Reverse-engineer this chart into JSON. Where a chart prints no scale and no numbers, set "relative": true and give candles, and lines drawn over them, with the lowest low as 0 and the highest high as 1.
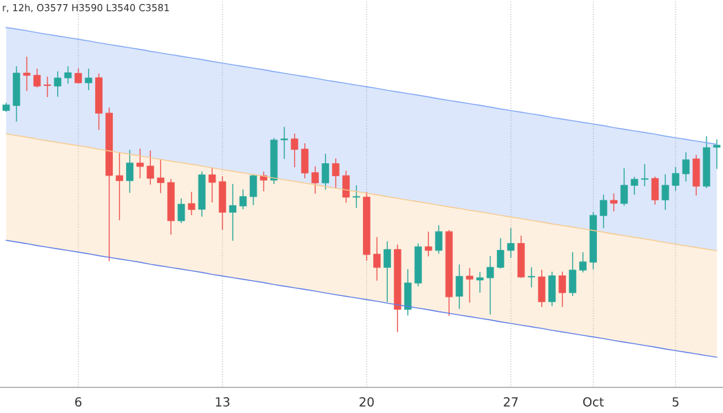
{
  "chart_data": {
    "type": "candlestick",
    "relative": true,
    "title": "r, 12h, O3577 H3590 L3540 C3581",
    "categories": [
      null,
      null,
      null,
      null,
      null,
      null,
      null,
      "6",
      null,
      null,
      null,
      null,
      null,
      null,
      null,
      null,
      null,
      null,
      null,
      null,
      null,
      "13",
      null,
      null,
      null,
      null,
      null,
      null,
      null,
      null,
      null,
      null,
      null,
      null,
      null,
      "20",
      null,
      null,
      null,
      null,
      null,
      null,
      null,
      null,
      null,
      null,
      null,
      null,
      null,
      "27",
      null,
      null,
      null,
      null,
      null,
      null,
      null,
      "Oct",
      null,
      null,
      null,
      null,
      null,
      null,
      null,
      "5",
      null,
      null,
      null,
      null
    ],
    "colors": [
      "#26a69a",
      "#26a69a",
      "#ef5350",
      "#ef5350",
      "#ef5350",
      "#26a69a",
      "#26a69a",
      "#ef5350",
      "#26a69a",
      "#ef5350",
      "#ef5350",
      "#ef5350",
      "#26a69a",
      "#ef5350",
      "#ef5350",
      "#ef5350",
      "#ef5350",
      "#26a69a",
      "#ef5350",
      "#26a69a",
      "#ef5350",
      "#ef5350",
      "#26a69a",
      "#26a69a",
      "#26a69a",
      "#ef5350",
      "#26a69a",
      "#26a69a",
      "#ef5350",
      "#ef5350",
      "#ef5350",
      "#26a69a",
      "#ef5350",
      "#ef5350",
      "#26a69a",
      "#ef5350",
      "#ef5350",
      "#26a69a",
      "#ef5350",
      "#26a69a",
      "#26a69a",
      "#ef5350",
      "#26a69a",
      "#ef5350",
      "#26a69a",
      "#ef5350",
      "#26a69a",
      "#26a69a",
      "#26a69a",
      "#26a69a",
      "#ef5350",
      "#26a69a",
      "#ef5350",
      "#26a69a",
      "#ef5350",
      "#26a69a",
      "#26a69a",
      "#26a69a",
      "#26a69a",
      "#ef5350",
      "#26a69a",
      "#26a69a",
      "#26a69a",
      "#ef5350",
      "#26a69a",
      "#26a69a",
      "#26a69a",
      "#ef5350",
      "#26a69a",
      "#26a69a"
    ],
    "ohlc": [
      [
        0.806,
        0.833,
        0.803,
        0.827
      ],
      [
        0.824,
        0.966,
        0.767,
        0.943
      ],
      [
        0.943,
        1.0,
        0.879,
        0.934
      ],
      [
        0.935,
        0.957,
        0.892,
        0.895
      ],
      [
        0.899,
        0.928,
        0.857,
        0.897
      ],
      [
        0.895,
        0.947,
        0.858,
        0.925
      ],
      [
        0.925,
        0.966,
        0.906,
        0.944
      ],
      [
        0.942,
        0.958,
        0.906,
        0.907
      ],
      [
        0.907,
        0.957,
        0.882,
        0.925
      ],
      [
        0.926,
        0.939,
        0.737,
        0.796
      ],
      [
        0.797,
        0.815,
        0.259,
        0.569
      ],
      [
        0.569,
        0.65,
        0.408,
        0.55
      ],
      [
        0.55,
        0.661,
        0.508,
        0.615
      ],
      [
        0.615,
        0.666,
        0.561,
        0.602
      ],
      [
        0.604,
        0.659,
        0.538,
        0.559
      ],
      [
        0.561,
        0.627,
        0.507,
        0.543
      ],
      [
        0.544,
        0.555,
        0.356,
        0.404
      ],
      [
        0.404,
        0.484,
        0.398,
        0.465
      ],
      [
        0.467,
        0.508,
        0.427,
        0.445
      ],
      [
        0.446,
        0.582,
        0.421,
        0.572
      ],
      [
        0.572,
        0.596,
        0.473,
        0.544
      ],
      [
        0.547,
        0.565,
        0.373,
        0.435
      ],
      [
        0.435,
        0.537,
        0.333,
        0.46
      ],
      [
        0.458,
        0.517,
        0.448,
        0.493
      ],
      [
        0.492,
        0.571,
        0.463,
        0.569
      ],
      [
        0.569,
        0.582,
        0.513,
        0.552
      ],
      [
        0.552,
        0.704,
        0.54,
        0.699
      ],
      [
        0.699,
        0.745,
        0.632,
        0.703
      ],
      [
        0.703,
        0.72,
        0.601,
        0.664
      ],
      [
        0.666,
        0.685,
        0.561,
        0.578
      ],
      [
        0.58,
        0.601,
        0.505,
        0.542
      ],
      [
        0.542,
        0.647,
        0.52,
        0.613
      ],
      [
        0.613,
        0.63,
        0.525,
        0.568
      ],
      [
        0.569,
        0.585,
        0.472,
        0.49
      ],
      [
        0.49,
        0.532,
        0.453,
        0.492
      ],
      [
        0.491,
        0.507,
        0.26,
        0.281
      ],
      [
        0.283,
        0.343,
        0.188,
        0.234
      ],
      [
        0.234,
        0.328,
        0.109,
        0.3
      ],
      [
        0.3,
        0.316,
        0.0,
        0.081
      ],
      [
        0.081,
        0.226,
        0.061,
        0.178
      ],
      [
        0.177,
        0.32,
        0.167,
        0.31
      ],
      [
        0.31,
        0.363,
        0.276,
        0.296
      ],
      [
        0.296,
        0.386,
        0.286,
        0.365
      ],
      [
        0.365,
        0.369,
        0.059,
        0.127
      ],
      [
        0.129,
        0.243,
        0.085,
        0.202
      ],
      [
        0.203,
        0.23,
        0.108,
        0.191
      ],
      [
        0.188,
        0.216,
        0.144,
        0.197
      ],
      [
        0.196,
        0.274,
        0.065,
        0.235
      ],
      [
        0.234,
        0.339,
        0.232,
        0.297
      ],
      [
        0.296,
        0.376,
        0.271,
        0.322
      ],
      [
        0.322,
        0.348,
        0.198,
        0.199
      ],
      [
        0.199,
        0.233,
        0.163,
        0.2
      ],
      [
        0.2,
        0.224,
        0.092,
        0.109
      ],
      [
        0.109,
        0.217,
        0.095,
        0.204
      ],
      [
        0.204,
        0.217,
        0.092,
        0.142
      ],
      [
        0.142,
        0.288,
        0.132,
        0.225
      ],
      [
        0.224,
        0.288,
        0.218,
        0.255
      ],
      [
        0.253,
        0.434,
        0.229,
        0.424
      ],
      [
        0.423,
        0.498,
        0.379,
        0.479
      ],
      [
        0.479,
        0.502,
        0.44,
        0.468
      ],
      [
        0.467,
        0.594,
        0.461,
        0.534
      ],
      [
        0.533,
        0.563,
        0.501,
        0.556
      ],
      [
        0.555,
        0.609,
        0.532,
        0.557
      ],
      [
        0.559,
        0.564,
        0.465,
        0.48
      ],
      [
        0.48,
        0.572,
        0.446,
        0.534
      ],
      [
        0.533,
        0.599,
        0.515,
        0.577
      ],
      [
        0.575,
        0.652,
        0.549,
        0.627
      ],
      [
        0.63,
        0.643,
        0.498,
        0.53
      ],
      [
        0.53,
        0.711,
        0.525,
        0.671
      ],
      [
        0.672,
        0.699,
        0.595,
        0.68
      ]
    ],
    "series": [
      {
        "type": "area",
        "color": "#7fa6f5",
        "values": [
          1.109,
          1.103,
          1.097,
          1.09,
          1.084,
          1.078,
          1.072,
          1.066,
          1.06,
          1.053,
          1.047,
          1.041,
          1.035,
          1.029,
          1.022,
          1.016,
          1.01,
          1.004,
          0.998,
          0.992,
          0.985,
          0.979,
          0.973,
          0.967,
          0.961,
          0.955,
          0.948,
          0.942,
          0.936,
          0.93,
          0.924,
          0.917,
          0.911,
          0.905,
          0.899,
          0.893,
          0.887,
          0.88,
          0.874,
          0.868,
          0.862,
          0.856,
          0.849,
          0.843,
          0.837,
          0.831,
          0.825,
          0.819,
          0.812,
          0.806,
          0.8,
          0.794,
          0.788,
          0.781,
          0.775,
          0.769,
          0.763,
          0.757,
          0.751,
          0.744,
          0.738,
          0.732,
          0.726,
          0.72,
          0.713,
          0.707,
          0.701,
          0.695,
          0.689,
          0.683
        ]
      },
      {
        "type": "area",
        "color": "#f7c98c",
        "values": [
          0.721,
          0.715,
          0.709,
          0.702,
          0.696,
          0.69,
          0.684,
          0.678,
          0.672,
          0.665,
          0.659,
          0.653,
          0.647,
          0.641,
          0.634,
          0.628,
          0.622,
          0.616,
          0.61,
          0.604,
          0.597,
          0.591,
          0.585,
          0.579,
          0.573,
          0.567,
          0.56,
          0.554,
          0.548,
          0.542,
          0.536,
          0.529,
          0.523,
          0.517,
          0.511,
          0.505,
          0.499,
          0.492,
          0.486,
          0.48,
          0.474,
          0.468,
          0.461,
          0.455,
          0.449,
          0.443,
          0.437,
          0.431,
          0.424,
          0.418,
          0.412,
          0.406,
          0.4,
          0.393,
          0.387,
          0.381,
          0.375,
          0.369,
          0.363,
          0.356,
          0.35,
          0.344,
          0.338,
          0.332,
          0.325,
          0.319,
          0.313,
          0.307,
          0.301,
          0.295
        ]
      },
      {
        "type": "line",
        "color": "#5b7be8",
        "values": [
          0.333,
          0.327,
          0.321,
          0.314,
          0.308,
          0.302,
          0.296,
          0.29,
          0.284,
          0.277,
          0.271,
          0.265,
          0.259,
          0.253,
          0.246,
          0.24,
          0.234,
          0.228,
          0.222,
          0.216,
          0.209,
          0.203,
          0.197,
          0.191,
          0.185,
          0.179,
          0.172,
          0.166,
          0.16,
          0.154,
          0.148,
          0.141,
          0.135,
          0.129,
          0.123,
          0.117,
          0.111,
          0.104,
          0.098,
          0.092,
          0.086,
          0.08,
          0.073,
          0.067,
          0.061,
          0.055,
          0.049,
          0.043,
          0.036,
          0.03,
          0.024,
          0.018,
          0.012,
          0.005,
          -0.001,
          -0.007,
          -0.013,
          -0.019,
          -0.025,
          -0.032,
          -0.038,
          -0.044,
          -0.05,
          -0.056,
          -0.063,
          -0.069,
          -0.075,
          -0.081,
          -0.087,
          -0.093
        ]
      }
    ],
    "grid": "x"
  }
}
